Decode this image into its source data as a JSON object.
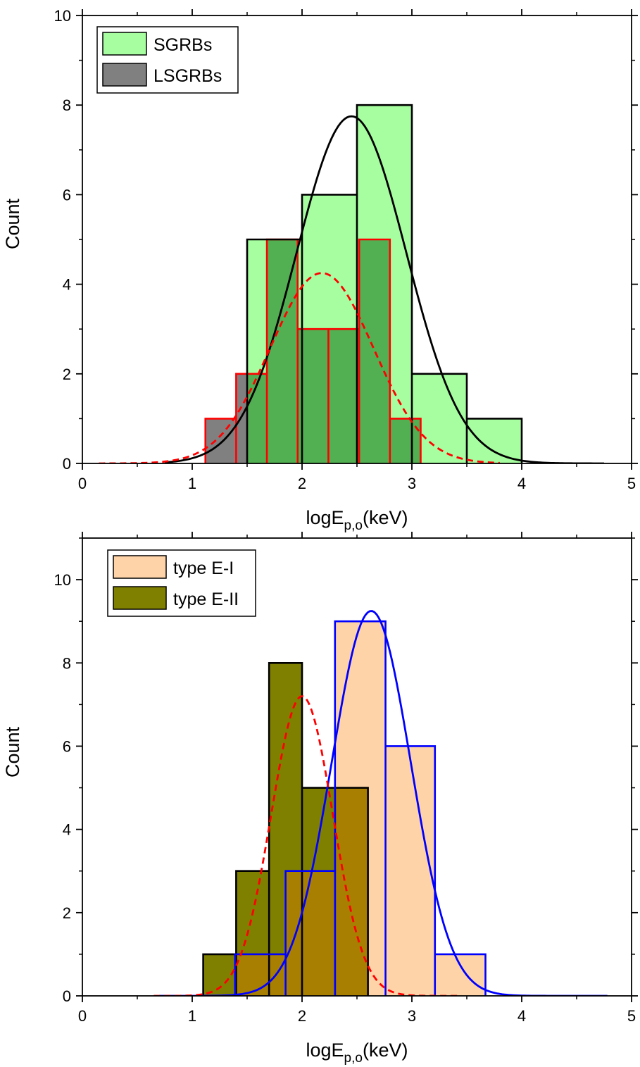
{
  "chart_data": [
    {
      "type": "bar",
      "xlabel": "logE",
      "xlabel_sub": "p,o",
      "xlabel_unit": "(keV)",
      "ylabel": "Count",
      "xlim": [
        0,
        5
      ],
      "ylim": [
        0,
        10
      ],
      "xticks": [
        0,
        1,
        2,
        3,
        4,
        5
      ],
      "yticks": [
        0,
        2,
        4,
        6,
        8,
        10
      ],
      "legend_position": "top-left",
      "series": [
        {
          "name": "SGRBs",
          "fill": "#a6fea0",
          "stroke": "#000000",
          "bins": [
            [
              1.5,
              2.0,
              5
            ],
            [
              2.0,
              2.5,
              6
            ],
            [
              2.5,
              3.0,
              8
            ],
            [
              3.0,
              3.5,
              2
            ],
            [
              3.5,
              4.0,
              1
            ]
          ],
          "fit": {
            "type": "gaussian",
            "amplitude": 7.75,
            "mean": 2.45,
            "sigma": 0.5,
            "x_range": [
              0.75,
              4.75
            ],
            "color": "#000000",
            "dashed": false
          }
        },
        {
          "name": "LSGRBs",
          "fill": "#808080",
          "stroke": "#ff0000",
          "bins": [
            [
              1.12,
              1.4,
              1
            ],
            [
              1.4,
              1.68,
              2
            ],
            [
              1.68,
              1.96,
              5
            ],
            [
              1.96,
              2.24,
              3
            ],
            [
              2.24,
              2.52,
              3
            ],
            [
              2.52,
              2.8,
              5
            ],
            [
              2.8,
              3.08,
              1
            ]
          ],
          "fit": {
            "type": "gaussian",
            "amplitude": 4.25,
            "mean": 2.18,
            "sigma": 0.47,
            "x_range": [
              0.15,
              3.8
            ],
            "color": "#ff0000",
            "dashed": true
          }
        }
      ],
      "overlap_fill": "#52af52",
      "overlap_stroke": "#a05a00"
    },
    {
      "type": "bar",
      "xlabel": "logE",
      "xlabel_sub": "p,o",
      "xlabel_unit": "(keV)",
      "ylabel": "Count",
      "xlim": [
        0,
        5
      ],
      "ylim": [
        0,
        11
      ],
      "xticks": [
        0,
        1,
        2,
        3,
        4,
        5
      ],
      "yticks": [
        0,
        2,
        4,
        6,
        8,
        10
      ],
      "legend_position": "top-left",
      "series": [
        {
          "name": "type E-I",
          "fill": "#fdd3a7",
          "stroke": "#0000ff",
          "bins": [
            [
              1.39,
              1.85,
              1
            ],
            [
              1.85,
              2.3,
              3
            ],
            [
              2.3,
              2.76,
              9
            ],
            [
              2.76,
              3.21,
              6
            ],
            [
              3.21,
              3.67,
              1
            ]
          ],
          "fit": {
            "type": "gaussian",
            "amplitude": 9.25,
            "mean": 2.63,
            "sigma": 0.36,
            "x_range": [
              0.7,
              4.78
            ],
            "color": "#0000ff",
            "dashed": false
          }
        },
        {
          "name": "type E-II",
          "fill": "#808000",
          "stroke": "#000000",
          "bins": [
            [
              1.1,
              1.4,
              1
            ],
            [
              1.4,
              1.7,
              3
            ],
            [
              1.7,
              2.0,
              8
            ],
            [
              2.0,
              2.3,
              5
            ],
            [
              2.3,
              2.6,
              5
            ]
          ],
          "fit": {
            "type": "gaussian",
            "amplitude": 7.2,
            "mean": 2.0,
            "sigma": 0.28,
            "x_range": [
              0.65,
              3.45
            ],
            "color": "#ff0000",
            "dashed": true
          }
        }
      ],
      "overlap_fill": "#a87f00",
      "overlap_stroke": "#4a3a00"
    }
  ]
}
